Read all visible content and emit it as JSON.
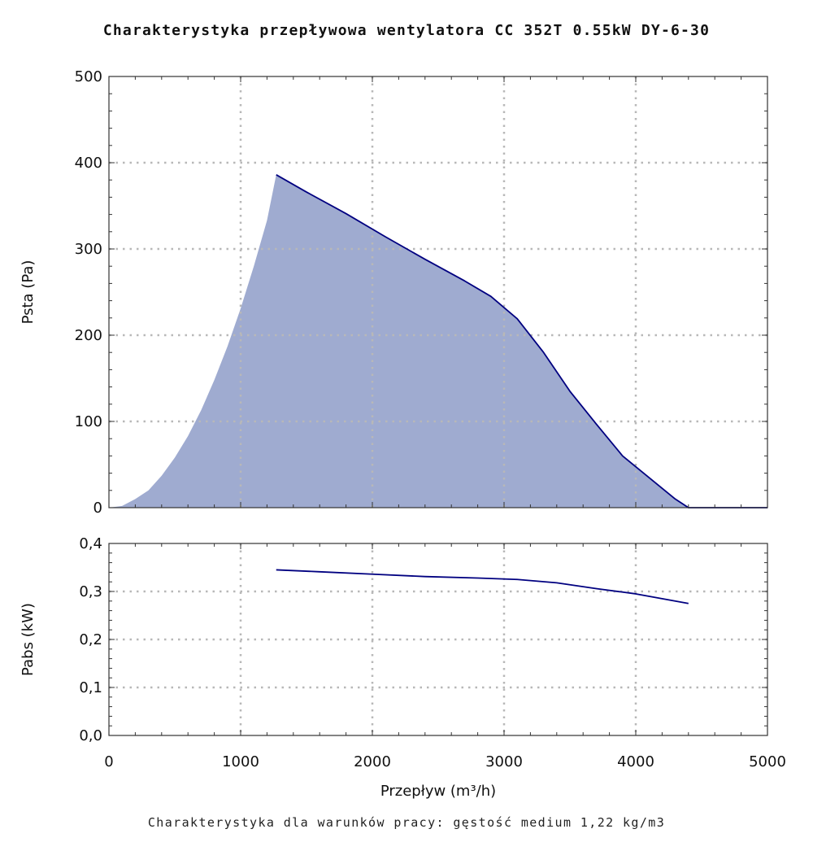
{
  "chart_data": [
    {
      "type": "area",
      "title": "Charakterystyka przepływowa wentylatora CC 352T 0.55kW DY-6-30",
      "xlabel": "",
      "ylabel": "Psta (Pa)",
      "xlim": [
        0,
        5000
      ],
      "ylim": [
        0,
        500
      ],
      "x_ticks": [
        "0",
        "1000",
        "2000",
        "3000",
        "4000",
        "5000"
      ],
      "y_ticks": [
        "0",
        "100",
        "200",
        "300",
        "400",
        "500"
      ],
      "grid": true,
      "colors": {
        "fill": "#9fabd0",
        "line": "#000080",
        "grid": "#b8b8b8"
      },
      "system_curve": {
        "x": [
          0,
          100,
          200,
          300,
          400,
          500,
          600,
          700,
          800,
          900,
          1000,
          1100,
          1200,
          1270
        ],
        "y": [
          0,
          2,
          10,
          20,
          37,
          58,
          83,
          113,
          148,
          187,
          231,
          280,
          333,
          386
        ]
      },
      "series": [
        {
          "values_x": [
            1270,
            1500,
            1800,
            2100,
            2400,
            2700,
            2900,
            3100,
            3300,
            3500,
            3700,
            3900,
            4100,
            4300,
            4400,
            5000
          ],
          "values_y": [
            386,
            366,
            341,
            314,
            288,
            263,
            245,
            219,
            180,
            135,
            97,
            60,
            35,
            10,
            0,
            0
          ]
        }
      ]
    },
    {
      "type": "line",
      "xlabel": "Przepływ (m³/h)",
      "ylabel": "Pabs (kW)",
      "xlim": [
        0,
        5000
      ],
      "ylim": [
        0,
        0.4
      ],
      "x_ticks": [
        "0",
        "1000",
        "2000",
        "3000",
        "4000",
        "5000"
      ],
      "y_ticks": [
        "0,0",
        "0,1",
        "0,2",
        "0,3",
        "0,4"
      ],
      "grid": true,
      "colors": {
        "line": "#000080",
        "grid": "#b8b8b8"
      },
      "series": [
        {
          "values_x": [
            1270,
            1600,
            2000,
            2400,
            2800,
            3100,
            3400,
            3700,
            4000,
            4200,
            4400
          ],
          "values_y": [
            0.345,
            0.341,
            0.336,
            0.331,
            0.328,
            0.325,
            0.318,
            0.306,
            0.295,
            0.285,
            0.275
          ]
        }
      ]
    }
  ],
  "footnote": "Charakterystyka dla warunków pracy: gęstość medium 1,22 kg/m3"
}
